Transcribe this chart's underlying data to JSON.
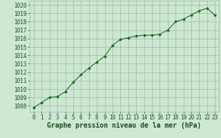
{
  "x": [
    0,
    1,
    2,
    3,
    4,
    5,
    6,
    7,
    8,
    9,
    10,
    11,
    12,
    13,
    14,
    15,
    16,
    17,
    18,
    19,
    20,
    21,
    22,
    23
  ],
  "y": [
    1007.8,
    1008.4,
    1009.0,
    1009.1,
    1009.7,
    1010.8,
    1011.7,
    1012.5,
    1013.2,
    1013.9,
    1015.2,
    1015.9,
    1016.1,
    1016.3,
    1016.4,
    1016.4,
    1016.5,
    1017.0,
    1018.0,
    1018.3,
    1018.8,
    1019.3,
    1019.6,
    1018.8
  ],
  "title": "Graphe pression niveau de la mer (hPa)",
  "ylim_min": 1007.3,
  "ylim_max": 1020.5,
  "xlim_min": -0.5,
  "xlim_max": 23.5,
  "yticks": [
    1008,
    1009,
    1010,
    1011,
    1012,
    1013,
    1014,
    1015,
    1016,
    1017,
    1018,
    1019,
    1020
  ],
  "xticks": [
    0,
    1,
    2,
    3,
    4,
    5,
    6,
    7,
    8,
    9,
    10,
    11,
    12,
    13,
    14,
    15,
    16,
    17,
    18,
    19,
    20,
    21,
    22,
    23
  ],
  "line_color": "#1a6b1a",
  "marker_color": "#1a6b1a",
  "bg_color": "#cce8d4",
  "grid_color": "#99bb99",
  "title_color": "#1a4b1a",
  "title_fontsize": 7.0,
  "tick_fontsize": 5.5
}
